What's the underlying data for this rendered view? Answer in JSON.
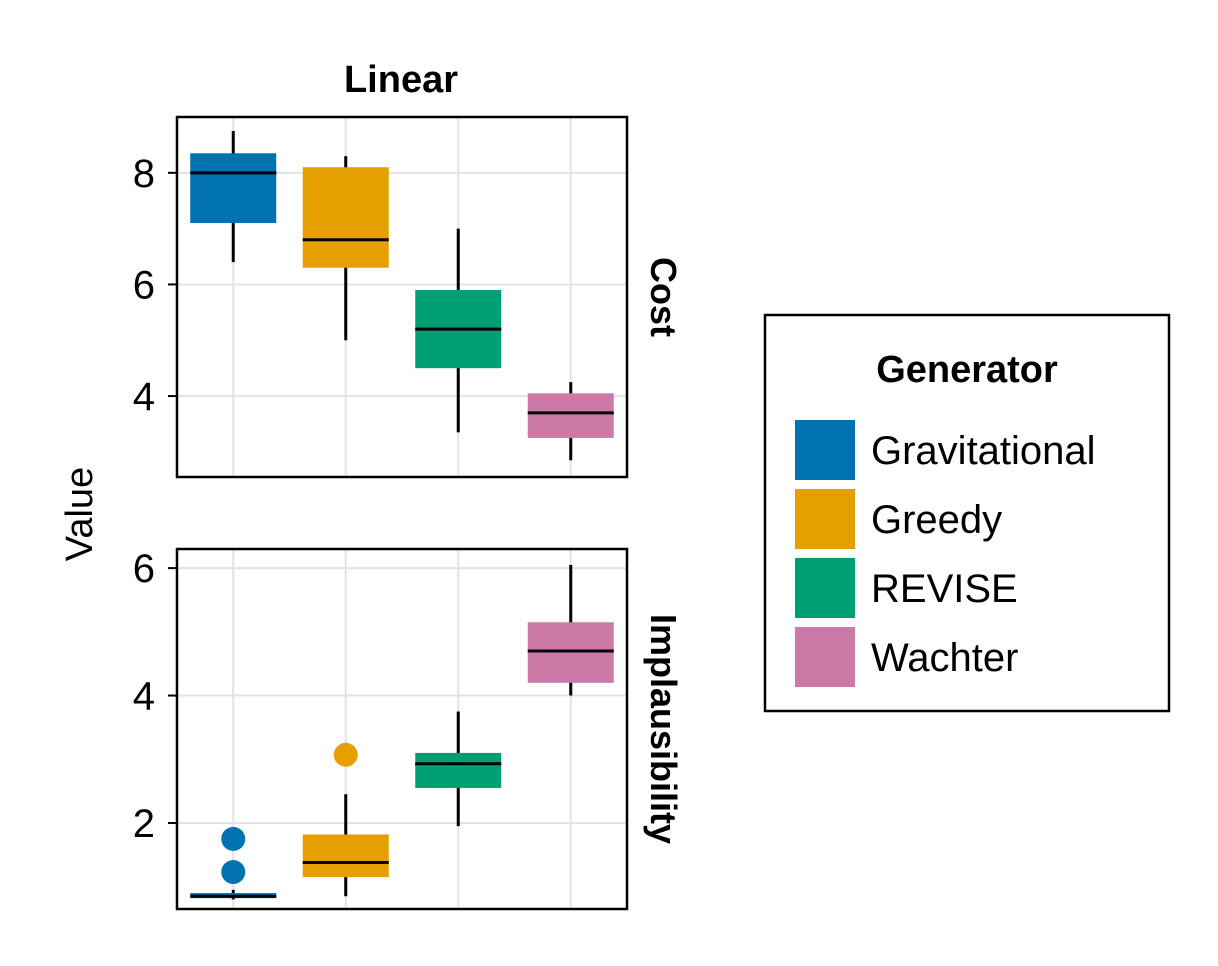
{
  "chart_data": {
    "type": "box",
    "title": "Linear",
    "ylabel": "Value",
    "legend": {
      "title": "Generator",
      "position": "right",
      "entries": [
        {
          "label": "Gravitational",
          "color": "#0072b2"
        },
        {
          "label": "Greedy",
          "color": "#e69f00"
        },
        {
          "label": "REVISE",
          "color": "#009e73"
        },
        {
          "label": "Wachter",
          "color": "#cc79a7"
        }
      ]
    },
    "categories": [
      "Gravitational",
      "Greedy",
      "REVISE",
      "Wachter"
    ],
    "panels": [
      {
        "facet_label": "Cost",
        "ylim": [
          2.55,
          9.0
        ],
        "yticks": [
          4,
          6,
          8
        ],
        "grid": true,
        "boxes": [
          {
            "category": "Gravitational",
            "whisker_low": 6.4,
            "q1": 7.1,
            "median": 8.0,
            "q3": 8.35,
            "whisker_high": 8.75,
            "outliers": []
          },
          {
            "category": "Greedy",
            "whisker_low": 5.0,
            "q1": 6.3,
            "median": 6.8,
            "q3": 8.1,
            "whisker_high": 8.3,
            "outliers": []
          },
          {
            "category": "REVISE",
            "whisker_low": 3.35,
            "q1": 4.5,
            "median": 5.2,
            "q3": 5.9,
            "whisker_high": 7.0,
            "outliers": []
          },
          {
            "category": "Wachter",
            "whisker_low": 2.85,
            "q1": 3.25,
            "median": 3.7,
            "q3": 4.05,
            "whisker_high": 4.25,
            "outliers": []
          }
        ]
      },
      {
        "facet_label": "Implausibility",
        "ylim": [
          0.65,
          6.3
        ],
        "yticks": [
          2,
          4,
          6
        ],
        "grid": true,
        "boxes": [
          {
            "category": "Gravitational",
            "whisker_low": 0.8,
            "q1": 0.82,
            "median": 0.85,
            "q3": 0.9,
            "whisker_high": 0.95,
            "outliers": [
              1.23,
              1.75
            ]
          },
          {
            "category": "Greedy",
            "whisker_low": 0.85,
            "q1": 1.15,
            "median": 1.38,
            "q3": 1.82,
            "whisker_high": 2.45,
            "outliers": [
              3.07
            ]
          },
          {
            "category": "REVISE",
            "whisker_low": 1.95,
            "q1": 2.55,
            "median": 2.93,
            "q3": 3.1,
            "whisker_high": 3.75,
            "outliers": []
          },
          {
            "category": "Wachter",
            "whisker_low": 4.0,
            "q1": 4.2,
            "median": 4.7,
            "q3": 5.15,
            "whisker_high": 6.05,
            "outliers": []
          }
        ]
      }
    ]
  }
}
